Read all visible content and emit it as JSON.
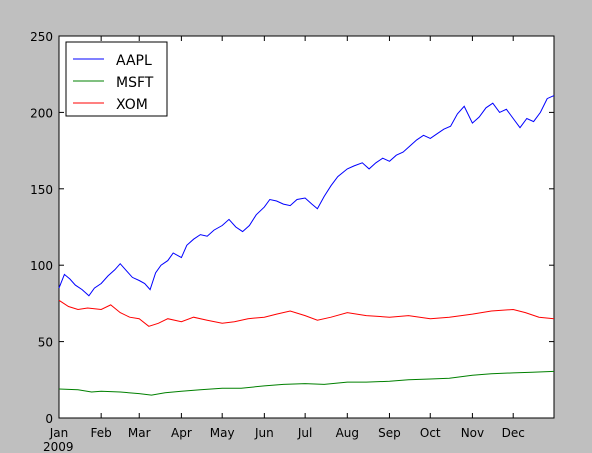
{
  "chart_data": {
    "type": "line",
    "title": "",
    "xlabel": "",
    "ylabel": "",
    "x_axis": {
      "kind": "date",
      "range": [
        "2009-01-01",
        "2009-12-31"
      ],
      "tick_labels": [
        "Jan",
        "Feb",
        "Mar",
        "Apr",
        "May",
        "Jun",
        "Jul",
        "Aug",
        "Sep",
        "Oct",
        "Nov",
        "Dec"
      ],
      "tick_dates": [
        "2009-01-01",
        "2009-02-01",
        "2009-03-01",
        "2009-04-01",
        "2009-05-01",
        "2009-06-01",
        "2009-07-01",
        "2009-08-01",
        "2009-09-01",
        "2009-10-01",
        "2009-11-01",
        "2009-12-01"
      ],
      "year_label": "2009"
    },
    "y_axis": {
      "range": [
        0,
        250
      ],
      "ticks": [
        0,
        50,
        100,
        150,
        200,
        250
      ]
    },
    "grid": false,
    "legend": {
      "position": "top-left"
    },
    "series": [
      {
        "name": "AAPL",
        "color": "#0000ff",
        "points": [
          [
            "2009-01-01",
            85
          ],
          [
            "2009-01-05",
            94
          ],
          [
            "2009-01-09",
            91
          ],
          [
            "2009-01-13",
            87
          ],
          [
            "2009-01-18",
            84
          ],
          [
            "2009-01-23",
            80
          ],
          [
            "2009-01-27",
            85
          ],
          [
            "2009-02-01",
            88
          ],
          [
            "2009-02-06",
            93
          ],
          [
            "2009-02-11",
            97
          ],
          [
            "2009-02-15",
            101
          ],
          [
            "2009-02-19",
            97
          ],
          [
            "2009-02-24",
            92
          ],
          [
            "2009-03-01",
            90
          ],
          [
            "2009-03-05",
            88
          ],
          [
            "2009-03-09",
            84
          ],
          [
            "2009-03-13",
            95
          ],
          [
            "2009-03-17",
            100
          ],
          [
            "2009-03-22",
            103
          ],
          [
            "2009-03-26",
            108
          ],
          [
            "2009-04-01",
            105
          ],
          [
            "2009-04-05",
            113
          ],
          [
            "2009-04-10",
            117
          ],
          [
            "2009-04-15",
            120
          ],
          [
            "2009-04-20",
            119
          ],
          [
            "2009-04-25",
            123
          ],
          [
            "2009-05-01",
            126
          ],
          [
            "2009-05-06",
            130
          ],
          [
            "2009-05-11",
            125
          ],
          [
            "2009-05-16",
            122
          ],
          [
            "2009-05-21",
            126
          ],
          [
            "2009-05-26",
            133
          ],
          [
            "2009-06-01",
            138
          ],
          [
            "2009-06-05",
            143
          ],
          [
            "2009-06-10",
            142
          ],
          [
            "2009-06-15",
            140
          ],
          [
            "2009-06-20",
            139
          ],
          [
            "2009-06-25",
            143
          ],
          [
            "2009-07-01",
            144
          ],
          [
            "2009-07-06",
            140
          ],
          [
            "2009-07-10",
            137
          ],
          [
            "2009-07-15",
            145
          ],
          [
            "2009-07-20",
            152
          ],
          [
            "2009-07-25",
            158
          ],
          [
            "2009-08-01",
            163
          ],
          [
            "2009-08-06",
            165
          ],
          [
            "2009-08-12",
            167
          ],
          [
            "2009-08-17",
            163
          ],
          [
            "2009-08-22",
            167
          ],
          [
            "2009-08-27",
            170
          ],
          [
            "2009-09-01",
            168
          ],
          [
            "2009-09-06",
            172
          ],
          [
            "2009-09-11",
            174
          ],
          [
            "2009-09-16",
            178
          ],
          [
            "2009-09-21",
            182
          ],
          [
            "2009-09-26",
            185
          ],
          [
            "2009-10-01",
            183
          ],
          [
            "2009-10-06",
            186
          ],
          [
            "2009-10-11",
            189
          ],
          [
            "2009-10-16",
            191
          ],
          [
            "2009-10-21",
            199
          ],
          [
            "2009-10-26",
            204
          ],
          [
            "2009-11-01",
            193
          ],
          [
            "2009-11-06",
            197
          ],
          [
            "2009-11-11",
            203
          ],
          [
            "2009-11-16",
            206
          ],
          [
            "2009-11-21",
            200
          ],
          [
            "2009-11-26",
            202
          ],
          [
            "2009-12-01",
            196
          ],
          [
            "2009-12-06",
            190
          ],
          [
            "2009-12-11",
            196
          ],
          [
            "2009-12-16",
            194
          ],
          [
            "2009-12-21",
            200
          ],
          [
            "2009-12-26",
            209
          ],
          [
            "2009-12-31",
            211
          ]
        ]
      },
      {
        "name": "MSFT",
        "color": "#008000",
        "points": [
          [
            "2009-01-01",
            19
          ],
          [
            "2009-01-15",
            18.5
          ],
          [
            "2009-01-25",
            17
          ],
          [
            "2009-02-01",
            17.5
          ],
          [
            "2009-02-15",
            17
          ],
          [
            "2009-03-01",
            16
          ],
          [
            "2009-03-10",
            15
          ],
          [
            "2009-03-20",
            16.5
          ],
          [
            "2009-04-01",
            17.5
          ],
          [
            "2009-04-15",
            18.5
          ],
          [
            "2009-05-01",
            19.5
          ],
          [
            "2009-05-15",
            19.5
          ],
          [
            "2009-06-01",
            21
          ],
          [
            "2009-06-15",
            22
          ],
          [
            "2009-07-01",
            22.5
          ],
          [
            "2009-07-15",
            22
          ],
          [
            "2009-08-01",
            23.5
          ],
          [
            "2009-08-15",
            23.5
          ],
          [
            "2009-09-01",
            24
          ],
          [
            "2009-09-15",
            25
          ],
          [
            "2009-10-01",
            25.5
          ],
          [
            "2009-10-15",
            26
          ],
          [
            "2009-11-01",
            28
          ],
          [
            "2009-11-15",
            29
          ],
          [
            "2009-12-01",
            29.5
          ],
          [
            "2009-12-15",
            30
          ],
          [
            "2009-12-31",
            30.5
          ]
        ]
      },
      {
        "name": "XOM",
        "color": "#ff0000",
        "points": [
          [
            "2009-01-01",
            77
          ],
          [
            "2009-01-08",
            73
          ],
          [
            "2009-01-15",
            71
          ],
          [
            "2009-01-22",
            72
          ],
          [
            "2009-02-01",
            71
          ],
          [
            "2009-02-08",
            74
          ],
          [
            "2009-02-15",
            69
          ],
          [
            "2009-02-22",
            66
          ],
          [
            "2009-03-01",
            65
          ],
          [
            "2009-03-08",
            60
          ],
          [
            "2009-03-15",
            62
          ],
          [
            "2009-03-22",
            65
          ],
          [
            "2009-04-01",
            63
          ],
          [
            "2009-04-10",
            66
          ],
          [
            "2009-04-20",
            64
          ],
          [
            "2009-05-01",
            62
          ],
          [
            "2009-05-10",
            63
          ],
          [
            "2009-05-20",
            65
          ],
          [
            "2009-06-01",
            66
          ],
          [
            "2009-06-10",
            68
          ],
          [
            "2009-06-20",
            70
          ],
          [
            "2009-07-01",
            67
          ],
          [
            "2009-07-10",
            64
          ],
          [
            "2009-07-20",
            66
          ],
          [
            "2009-08-01",
            69
          ],
          [
            "2009-08-15",
            67
          ],
          [
            "2009-09-01",
            66
          ],
          [
            "2009-09-15",
            67
          ],
          [
            "2009-10-01",
            65
          ],
          [
            "2009-10-15",
            66
          ],
          [
            "2009-11-01",
            68
          ],
          [
            "2009-11-15",
            70
          ],
          [
            "2009-12-01",
            71
          ],
          [
            "2009-12-10",
            69
          ],
          [
            "2009-12-20",
            66
          ],
          [
            "2009-12-31",
            65
          ]
        ]
      }
    ]
  }
}
